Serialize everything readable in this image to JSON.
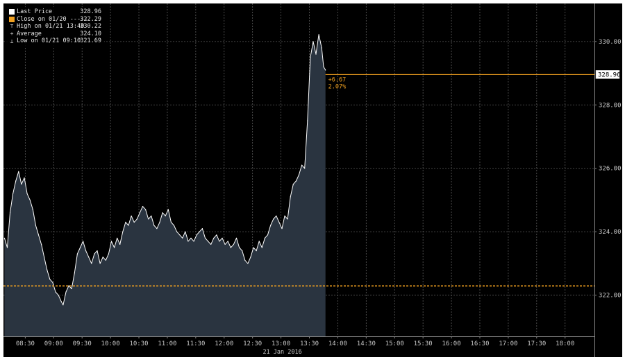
{
  "legend": {
    "items": [
      {
        "label": "Last Price",
        "value": "328.96",
        "marker": "white-square"
      },
      {
        "label": "Close on 01/20 -----",
        "value": "322.29",
        "marker": "orange-square"
      },
      {
        "label": "High on 01/21 13:40",
        "value": "330.22",
        "marker": "high-glyph"
      },
      {
        "label": "Average",
        "value": "324.10",
        "marker": "average-glyph"
      },
      {
        "label": "Low on 01/21 09:10",
        "value": "321.69",
        "marker": "low-glyph"
      }
    ]
  },
  "annotation": {
    "change": "+6.67",
    "change_pct": "2.07%"
  },
  "last_price_label": "328.96",
  "colors": {
    "background": "#000000",
    "area_fill": "#2a3440",
    "price_line": "#ffffff",
    "close_line": "#f0a020",
    "grid": "#5a5a5a",
    "text": "#c8c8c8"
  },
  "chart_data": {
    "type": "area",
    "x_axis_label": "21 Jan 2016",
    "x_ticks": [
      "08:30",
      "09:00",
      "09:30",
      "10:00",
      "10:30",
      "11:00",
      "11:30",
      "12:00",
      "12:30",
      "13:00",
      "13:30",
      "14:00",
      "14:30",
      "15:00",
      "15:30",
      "16:00",
      "16:30",
      "17:00",
      "17:30",
      "18:00"
    ],
    "y_ticks": [
      "322.00",
      "324.00",
      "326.00",
      "328.00",
      "330.00"
    ],
    "ylim": [
      320.7,
      331.2
    ],
    "xlim": [
      "08:07",
      "18:31"
    ],
    "y_axis_position": "right",
    "grid": true,
    "legend_position": "top-left",
    "reference_line": {
      "name": "Close on 01/20",
      "value": 322.29,
      "style": "dashed"
    },
    "last_price_line": {
      "name": "Last Price",
      "value": 328.96
    },
    "series": [
      {
        "name": "Last Price",
        "x": [
          "08:08",
          "08:11",
          "08:14",
          "08:17",
          "08:20",
          "08:23",
          "08:26",
          "08:29",
          "08:32",
          "08:35",
          "08:38",
          "08:41",
          "08:44",
          "08:47",
          "08:50",
          "08:53",
          "08:56",
          "08:59",
          "09:02",
          "09:05",
          "09:08",
          "09:10",
          "09:13",
          "09:16",
          "09:19",
          "09:22",
          "09:25",
          "09:28",
          "09:31",
          "09:34",
          "09:37",
          "09:40",
          "09:43",
          "09:46",
          "09:49",
          "09:52",
          "09:55",
          "09:58",
          "10:01",
          "10:04",
          "10:07",
          "10:10",
          "10:13",
          "10:16",
          "10:19",
          "10:22",
          "10:25",
          "10:28",
          "10:31",
          "10:34",
          "10:37",
          "10:40",
          "10:43",
          "10:46",
          "10:49",
          "10:52",
          "10:55",
          "10:58",
          "11:01",
          "11:04",
          "11:07",
          "11:10",
          "11:13",
          "11:16",
          "11:19",
          "11:22",
          "11:25",
          "11:28",
          "11:31",
          "11:34",
          "11:37",
          "11:40",
          "11:43",
          "11:46",
          "11:49",
          "11:52",
          "11:55",
          "11:58",
          "12:01",
          "12:04",
          "12:07",
          "12:10",
          "12:13",
          "12:16",
          "12:19",
          "12:22",
          "12:25",
          "12:28",
          "12:31",
          "12:34",
          "12:37",
          "12:40",
          "12:43",
          "12:46",
          "12:49",
          "12:52",
          "12:55",
          "12:58",
          "13:01",
          "13:04",
          "13:07",
          "13:10",
          "13:13",
          "13:16",
          "13:19",
          "13:22",
          "13:25",
          "13:28",
          "13:31",
          "13:34",
          "13:37",
          "13:40",
          "13:43",
          "13:45",
          "13:47"
        ],
        "values": [
          323.8,
          323.5,
          324.6,
          325.2,
          325.6,
          325.9,
          325.5,
          325.7,
          325.2,
          325.0,
          324.7,
          324.2,
          323.9,
          323.6,
          323.2,
          322.8,
          322.5,
          322.4,
          322.1,
          322.0,
          321.8,
          321.69,
          322.1,
          322.3,
          322.2,
          322.7,
          323.3,
          323.5,
          323.7,
          323.4,
          323.2,
          323.0,
          323.3,
          323.4,
          323.0,
          323.2,
          323.1,
          323.3,
          323.7,
          323.5,
          323.8,
          323.6,
          324.0,
          324.3,
          324.2,
          324.5,
          324.3,
          324.4,
          324.6,
          324.8,
          324.7,
          324.4,
          324.5,
          324.2,
          324.1,
          324.3,
          324.6,
          324.5,
          324.7,
          324.3,
          324.2,
          324.0,
          323.9,
          323.8,
          324.0,
          323.7,
          323.8,
          323.7,
          323.9,
          324.0,
          324.1,
          323.8,
          323.7,
          323.6,
          323.8,
          323.9,
          323.7,
          323.8,
          323.6,
          323.7,
          323.5,
          323.6,
          323.8,
          323.5,
          323.4,
          323.1,
          323.0,
          323.2,
          323.5,
          323.4,
          323.7,
          323.5,
          323.8,
          323.9,
          324.2,
          324.4,
          324.5,
          324.3,
          324.1,
          324.5,
          324.4,
          325.1,
          325.5,
          325.6,
          325.8,
          326.1,
          326.0,
          327.5,
          329.5,
          330.0,
          329.6,
          330.22,
          329.8,
          329.2,
          329.1
        ]
      }
    ]
  }
}
